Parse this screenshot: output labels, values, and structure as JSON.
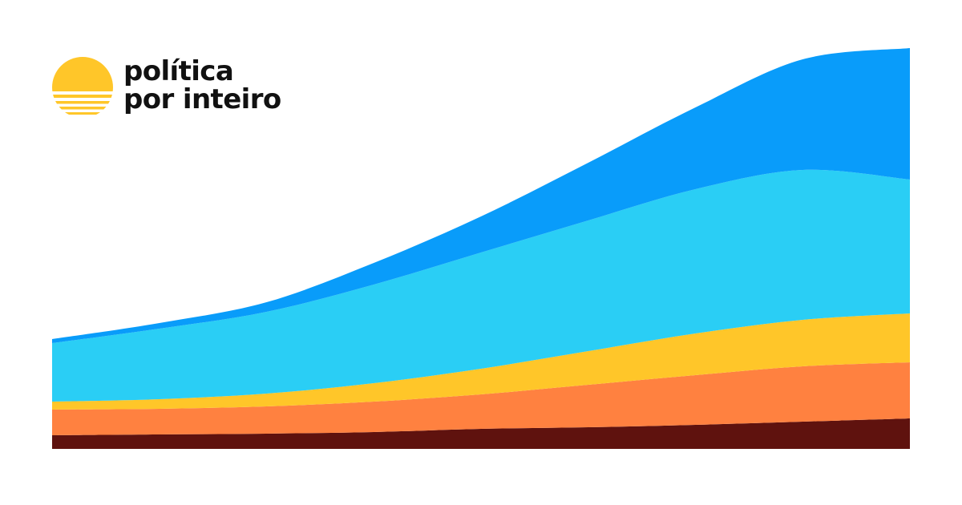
{
  "brand": {
    "line1": "política",
    "line2": "por inteiro",
    "icon": "sun-icon",
    "sun_color": "#FFC629",
    "text_color": "#111111"
  },
  "chart_data": {
    "type": "area",
    "stacked": true,
    "x": [
      0,
      1,
      2,
      3,
      4,
      5,
      6,
      7,
      8
    ],
    "xlim": [
      0,
      8
    ],
    "ylim": [
      0,
      500
    ],
    "grid": false,
    "legend": "none",
    "axes_visible": false,
    "series": [
      {
        "color": "#5F120E",
        "values": [
          17,
          18,
          19,
          21,
          25,
          27,
          30,
          34,
          38
        ]
      },
      {
        "color": "#FF8140",
        "values": [
          32,
          32,
          34,
          38,
          43,
          53,
          62,
          69,
          70
        ]
      },
      {
        "color": "#FFC629",
        "values": [
          10,
          12,
          16,
          23,
          32,
          42,
          52,
          58,
          61
        ]
      },
      {
        "color": "#2ACEF5",
        "values": [
          73,
          88,
          102,
          123,
          145,
          163,
          180,
          187,
          167
        ]
      },
      {
        "color": "#099CFA",
        "values": [
          5,
          7,
          12,
          27,
          45,
          72,
          102,
          138,
          164
        ]
      }
    ]
  }
}
